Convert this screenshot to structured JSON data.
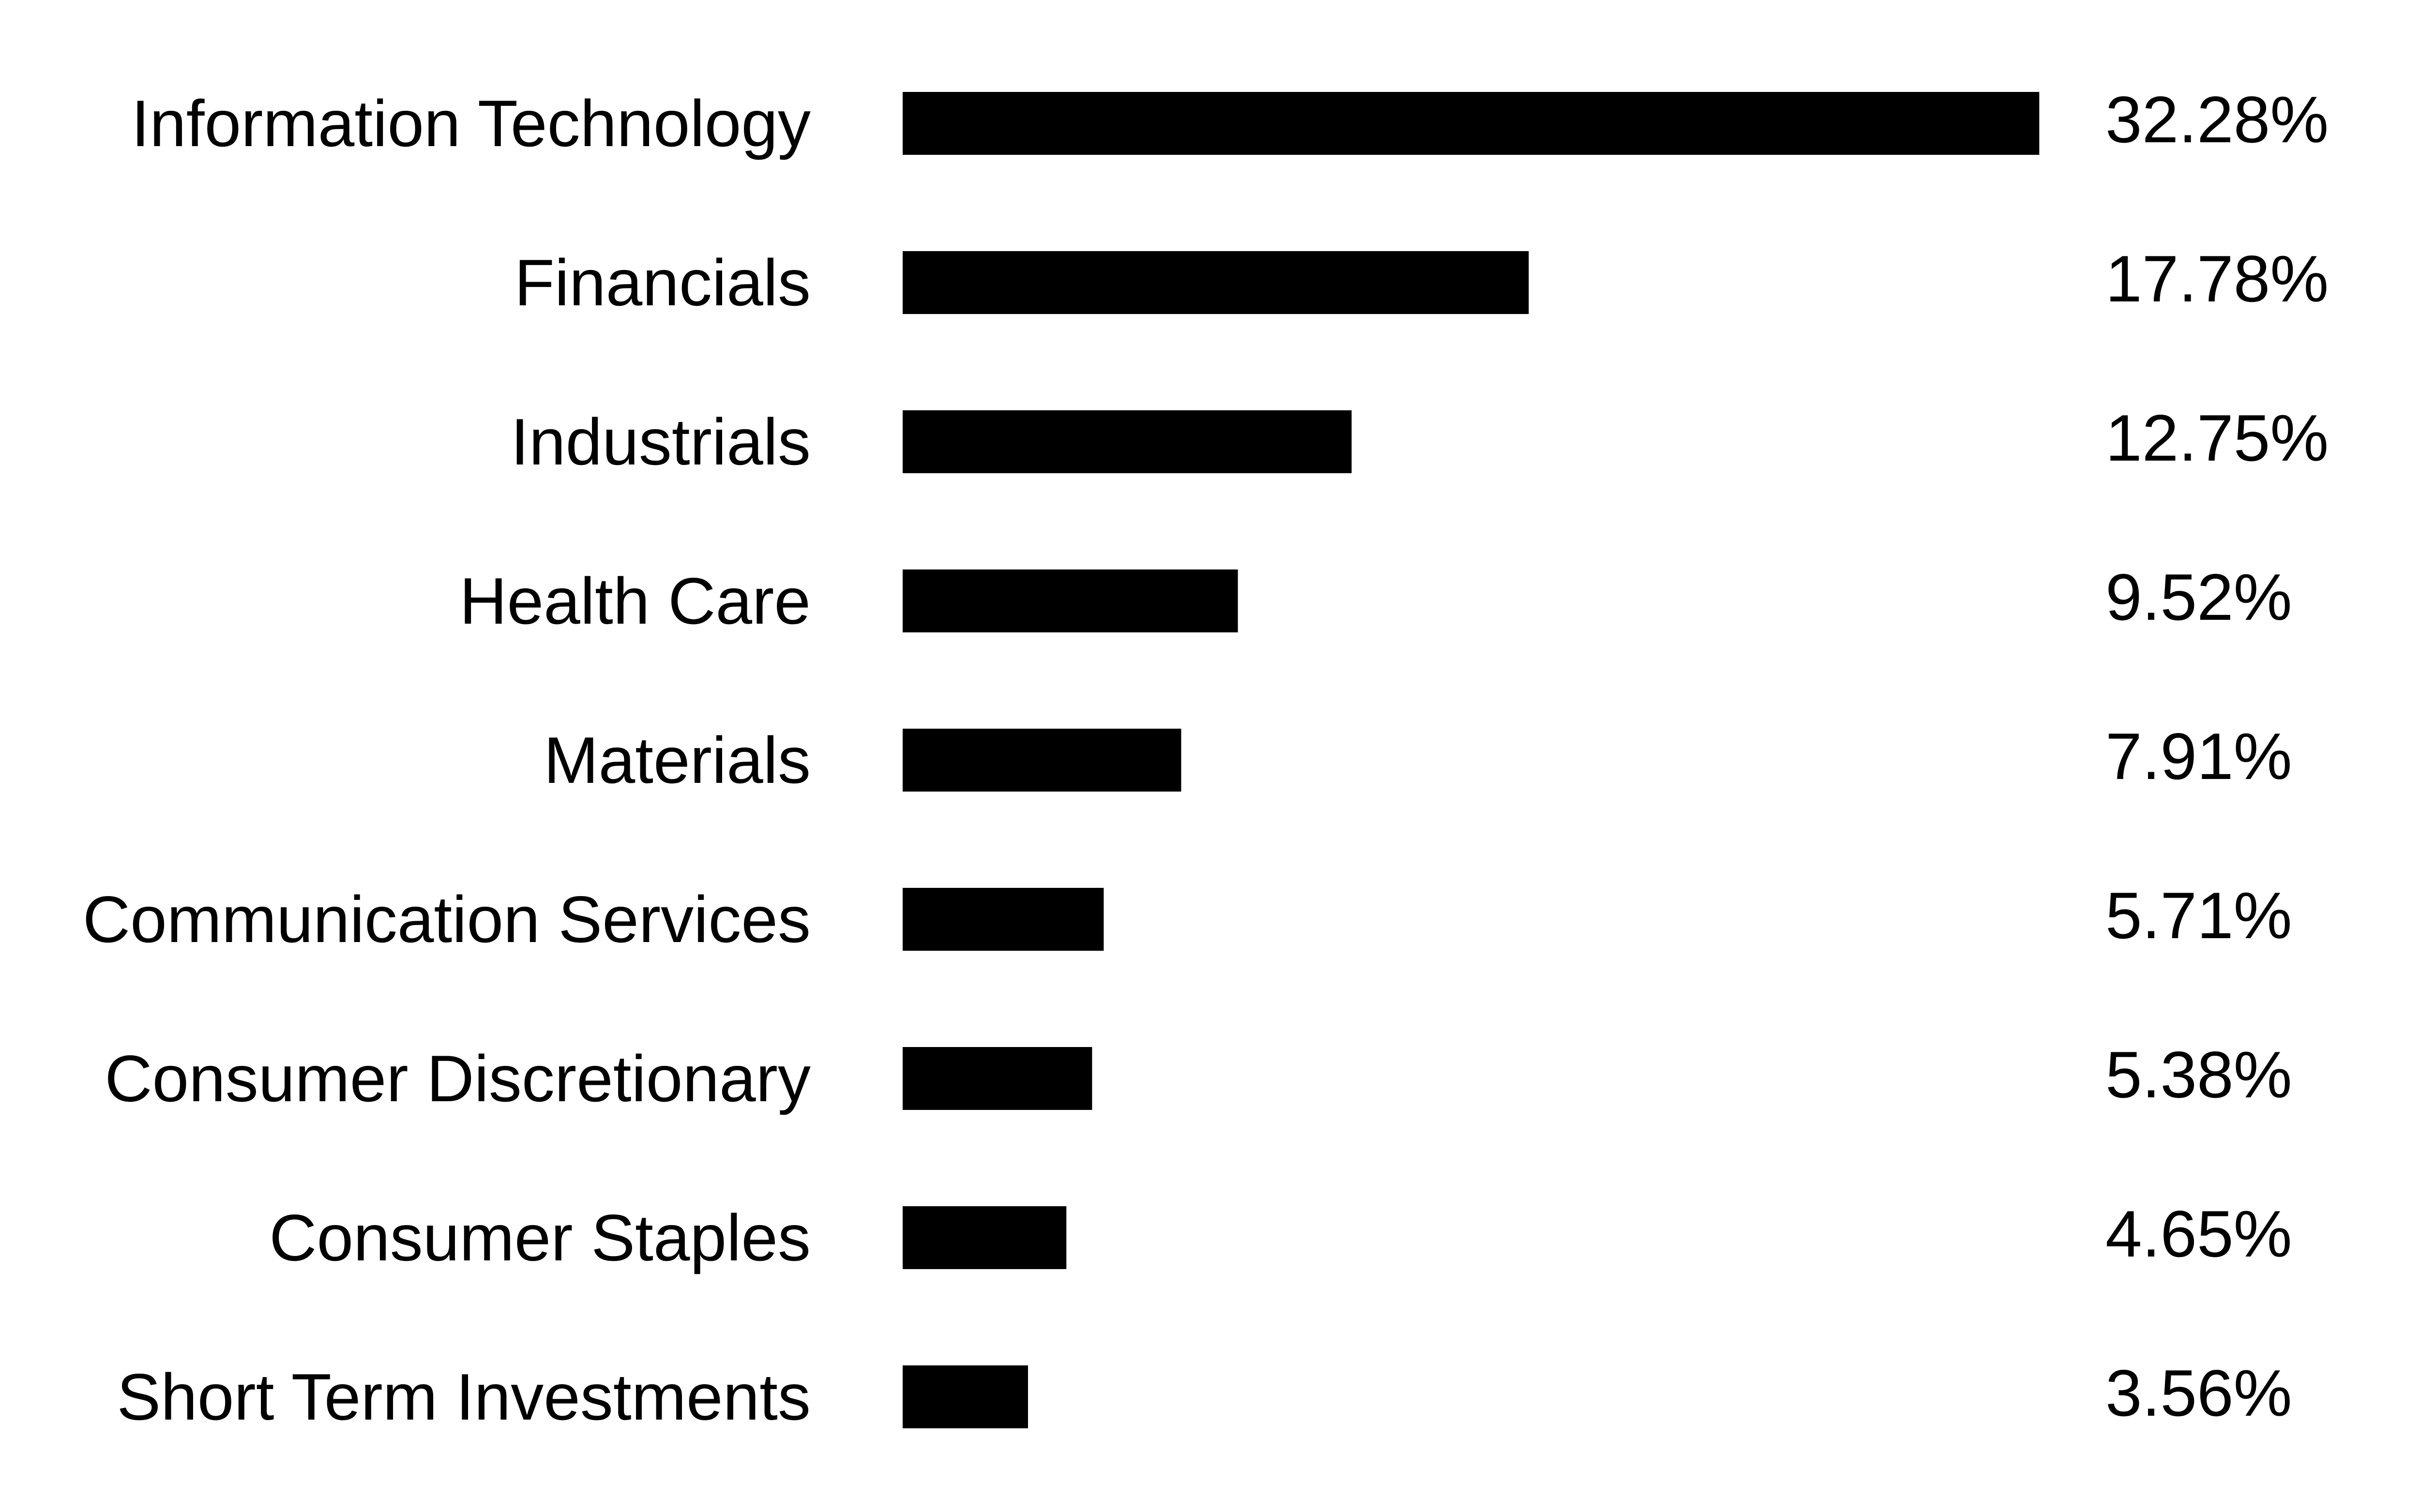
{
  "chart_data": {
    "type": "bar",
    "orientation": "horizontal",
    "categories": [
      "Information Technology",
      "Financials",
      "Industrials",
      "Health Care",
      "Materials",
      "Communication Services",
      "Consumer Discretionary",
      "Consumer Staples",
      "Short Term Investments"
    ],
    "values": [
      32.28,
      17.78,
      12.75,
      9.52,
      7.91,
      5.71,
      5.38,
      4.65,
      3.56
    ],
    "value_labels": [
      "32.28%",
      "17.78%",
      "12.75%",
      "9.52%",
      "7.91%",
      "5.71%",
      "5.38%",
      "4.65%",
      "3.56%"
    ],
    "title": "",
    "xlabel": "",
    "ylabel": "",
    "grid": false,
    "legend": "none",
    "bar_color": "#000000"
  }
}
